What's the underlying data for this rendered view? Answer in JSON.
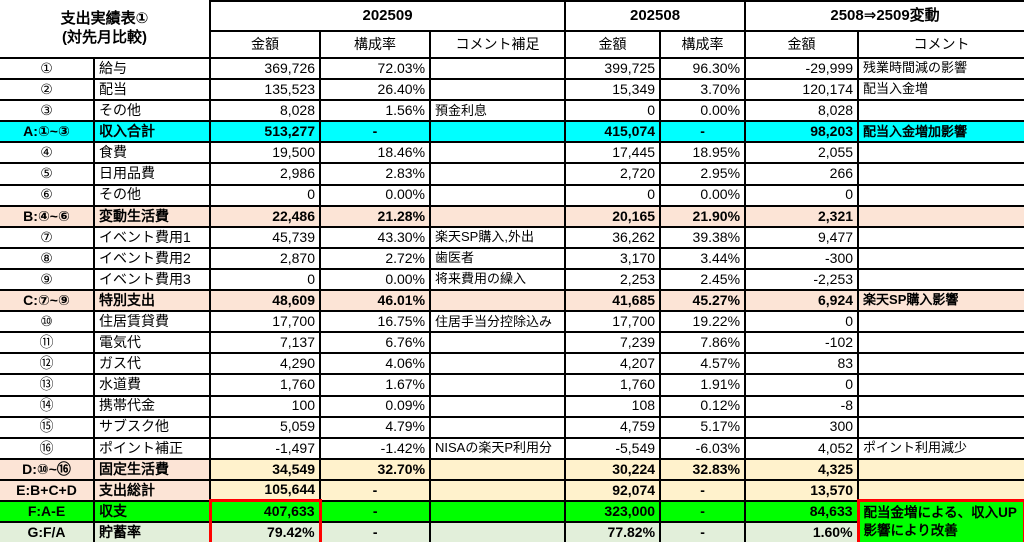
{
  "title": {
    "line1": "支出実績表①",
    "line2": "(対先月比較)"
  },
  "column_groups": [
    {
      "label": "202509"
    },
    {
      "label": "202508"
    },
    {
      "label": "2508⇒2509変動"
    }
  ],
  "sub_headers": [
    "金額",
    "構成率",
    "コメント補足",
    "金額",
    "構成率",
    "金額",
    "コメント"
  ],
  "colors": {
    "income_total_row": "#00ffff",
    "subtotal_row": "#fce4d6",
    "fixed_total_cells": "#fff2cc",
    "balance_row": "#00ff00",
    "savings_rate_row": "#e2efda",
    "highlight_border": "#ff0000",
    "grid": "#000000"
  },
  "rows": [
    {
      "style": "plain",
      "label": "①",
      "item": "給与",
      "amt09": "369,726",
      "pct09": "72.03%",
      "note09": "",
      "amt08": "399,725",
      "pct08": "96.30%",
      "diff": "-29,999",
      "note_diff": "残業時間減の影響"
    },
    {
      "style": "plain",
      "label": "②",
      "item": "配当",
      "amt09": "135,523",
      "pct09": "26.40%",
      "note09": "",
      "amt08": "15,349",
      "pct08": "3.70%",
      "diff": "120,174",
      "note_diff": "配当入金増"
    },
    {
      "style": "plain",
      "label": "③",
      "item": "その他",
      "amt09": "8,028",
      "pct09": "1.56%",
      "note09": "預金利息",
      "amt08": "0",
      "pct08": "0.00%",
      "diff": "8,028",
      "note_diff": ""
    },
    {
      "style": "cyan",
      "label": "A:①~③",
      "item": "収入合計",
      "amt09": "513,277",
      "pct09": "-",
      "note09": "",
      "amt08": "415,074",
      "pct08": "-",
      "diff": "98,203",
      "note_diff": "配当入金増加影響"
    },
    {
      "style": "plain",
      "label": "④",
      "item": "食費",
      "amt09": "19,500",
      "pct09": "18.46%",
      "note09": "",
      "amt08": "17,445",
      "pct08": "18.95%",
      "diff": "2,055",
      "note_diff": ""
    },
    {
      "style": "plain",
      "label": "⑤",
      "item": "日用品費",
      "amt09": "2,986",
      "pct09": "2.83%",
      "note09": "",
      "amt08": "2,720",
      "pct08": "2.95%",
      "diff": "266",
      "note_diff": ""
    },
    {
      "style": "plain",
      "label": "⑥",
      "item": "その他",
      "amt09": "0",
      "pct09": "0.00%",
      "note09": "",
      "amt08": "0",
      "pct08": "0.00%",
      "diff": "0",
      "note_diff": ""
    },
    {
      "style": "peach",
      "label": "B:④~⑥",
      "item": "変動生活費",
      "amt09": "22,486",
      "pct09": "21.28%",
      "note09": "",
      "amt08": "20,165",
      "pct08": "21.90%",
      "diff": "2,321",
      "note_diff": ""
    },
    {
      "style": "plain",
      "label": "⑦",
      "item": "イベント費用1",
      "amt09": "45,739",
      "pct09": "43.30%",
      "note09": "楽天SP購入,外出",
      "amt08": "36,262",
      "pct08": "39.38%",
      "diff": "9,477",
      "note_diff": ""
    },
    {
      "style": "plain",
      "label": "⑧",
      "item": "イベント費用2",
      "amt09": "2,870",
      "pct09": "2.72%",
      "note09": "歯医者",
      "amt08": "3,170",
      "pct08": "3.44%",
      "diff": "-300",
      "note_diff": ""
    },
    {
      "style": "plain",
      "label": "⑨",
      "item": "イベント費用3",
      "amt09": "0",
      "pct09": "0.00%",
      "note09": "将来費用の繰入",
      "amt08": "2,253",
      "pct08": "2.45%",
      "diff": "-2,253",
      "note_diff": ""
    },
    {
      "style": "peach",
      "label": "C:⑦~⑨",
      "item": "特別支出",
      "amt09": "48,609",
      "pct09": "46.01%",
      "note09": "",
      "amt08": "41,685",
      "pct08": "45.27%",
      "diff": "6,924",
      "note_diff": "楽天SP購入影響"
    },
    {
      "style": "plain",
      "label": "⑩",
      "item": "住居賃貸費",
      "amt09": "17,700",
      "pct09": "16.75%",
      "note09": "住居手当分控除込み",
      "amt08": "17,700",
      "pct08": "19.22%",
      "diff": "0",
      "note_diff": ""
    },
    {
      "style": "plain",
      "label": "⑪",
      "item": "電気代",
      "amt09": "7,137",
      "pct09": "6.76%",
      "note09": "",
      "amt08": "7,239",
      "pct08": "7.86%",
      "diff": "-102",
      "note_diff": ""
    },
    {
      "style": "plain",
      "label": "⑫",
      "item": "ガス代",
      "amt09": "4,290",
      "pct09": "4.06%",
      "note09": "",
      "amt08": "4,207",
      "pct08": "4.57%",
      "diff": "83",
      "note_diff": ""
    },
    {
      "style": "plain",
      "label": "⑬",
      "item": "水道費",
      "amt09": "1,760",
      "pct09": "1.67%",
      "note09": "",
      "amt08": "1,760",
      "pct08": "1.91%",
      "diff": "0",
      "note_diff": ""
    },
    {
      "style": "plain",
      "label": "⑭",
      "item": "携帯代金",
      "amt09": "100",
      "pct09": "0.09%",
      "note09": "",
      "amt08": "108",
      "pct08": "0.12%",
      "diff": "-8",
      "note_diff": ""
    },
    {
      "style": "plain",
      "label": "⑮",
      "item": "サブスク他",
      "amt09": "5,059",
      "pct09": "4.79%",
      "note09": "",
      "amt08": "4,759",
      "pct08": "5.17%",
      "diff": "300",
      "note_diff": ""
    },
    {
      "style": "plain",
      "label": "⑯",
      "item": "ポイント補正",
      "amt09": "-1,497",
      "pct09": "-1.42%",
      "note09": "NISAの楽天P利用分",
      "amt08": "-5,549",
      "pct08": "-6.03%",
      "diff": "4,052",
      "note_diff": "ポイント利用減少"
    },
    {
      "style": "mix",
      "label": "D:⑩~⑯",
      "item": "固定生活費",
      "amt09": "34,549",
      "pct09": "32.70%",
      "note09": "",
      "amt08": "30,224",
      "pct08": "32.83%",
      "diff": "4,325",
      "note_diff": ""
    },
    {
      "style": "mix",
      "label": "E:B+C+D",
      "item": "支出総計",
      "amt09": "105,644",
      "pct09": "-",
      "note09": "",
      "amt08": "92,074",
      "pct08": "-",
      "diff": "13,570",
      "note_diff": ""
    },
    {
      "style": "green",
      "label": "F:A-E",
      "item": "収支",
      "amt09": "407,633",
      "pct09": "-",
      "note09": "",
      "amt08": "323,000",
      "pct08": "-",
      "diff": "84,633",
      "note_diff": "配当金増による、収入UP影響により改善",
      "note_diff_rowspan": 2,
      "amt09_box": "top"
    },
    {
      "style": "lightgreen",
      "label": "G:F/A",
      "item": "貯蓄率",
      "amt09": "79.42%",
      "pct09": "-",
      "note09": "",
      "amt08": "77.82%",
      "pct08": "-",
      "diff": "1.60%",
      "note_diff": null,
      "amt09_box": "bottom"
    }
  ]
}
